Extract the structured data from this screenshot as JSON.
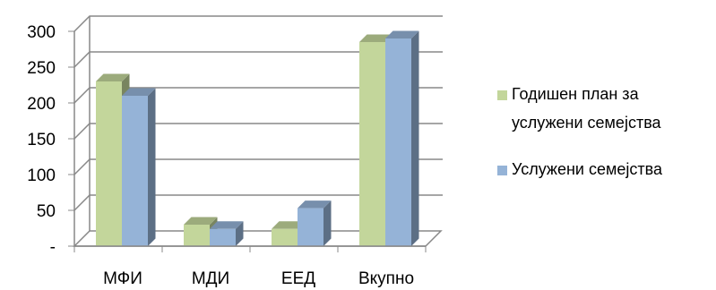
{
  "chart_data": {
    "type": "bar",
    "categories": [
      "МФИ",
      "МДИ",
      "ЕЕД",
      "Вкупно"
    ],
    "series": [
      {
        "name": "Годишен план за услужени семејства",
        "values": [
          230,
          30,
          24,
          285
        ],
        "color": "#c3d69b"
      },
      {
        "name": "Услужени семејства",
        "values": [
          210,
          24,
          53,
          290
        ],
        "color": "#95b3d7"
      }
    ],
    "yticks": [
      "-",
      "50",
      "100",
      "150",
      "200",
      "250",
      "300"
    ],
    "ylim": [
      0,
      300
    ],
    "grid": true,
    "legend_position": "right",
    "legend": {
      "line1": "Годишен план за",
      "line2": "услужени семејства",
      "line3": "Услужени семејства"
    }
  }
}
